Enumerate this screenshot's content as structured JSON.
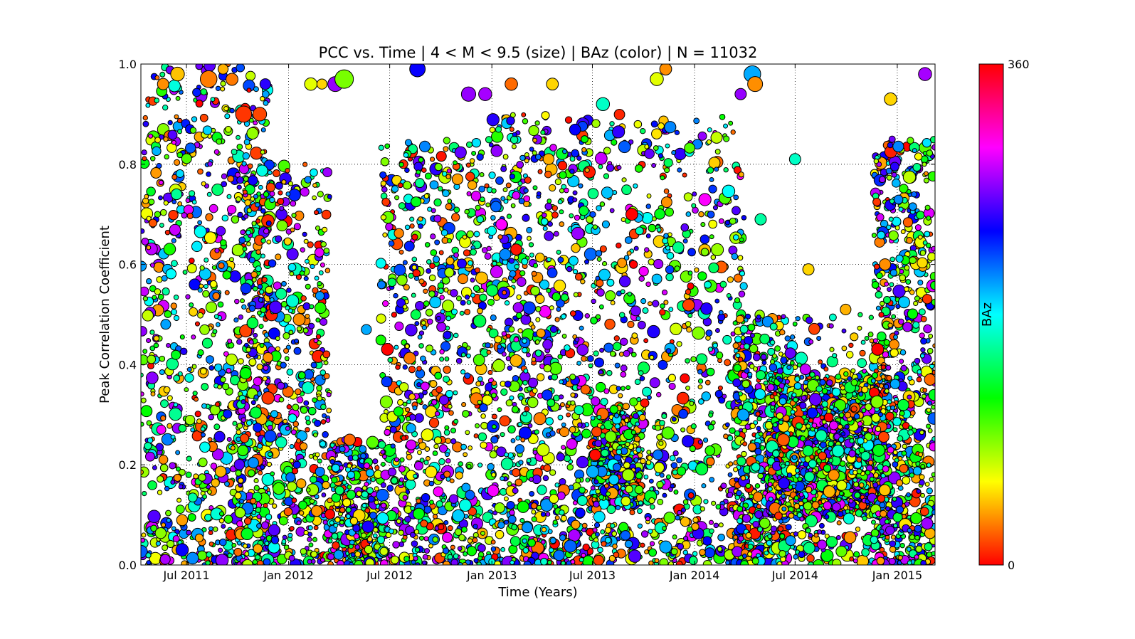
{
  "chart_data": {
    "type": "scatter",
    "title": "PCC vs. Time | 4 < M < 9.5 (size) | BAz (color) | N = 11032",
    "xlabel": "Time (Years)",
    "ylabel": "Peak Correlation Coefficient",
    "x_is_date": true,
    "xlim": [
      "2011-04-10",
      "2015-03-10"
    ],
    "ylim": [
      0.0,
      1.0
    ],
    "x_ticks": [
      {
        "date": "2011-07-01",
        "label": "Jul 2011"
      },
      {
        "date": "2012-01-01",
        "label": "Jan 2012"
      },
      {
        "date": "2012-07-01",
        "label": "Jul 2012"
      },
      {
        "date": "2013-01-01",
        "label": "Jan 2013"
      },
      {
        "date": "2013-07-01",
        "label": "Jul 2013"
      },
      {
        "date": "2014-01-01",
        "label": "Jan 2014"
      },
      {
        "date": "2014-07-01",
        "label": "Jul 2014"
      },
      {
        "date": "2015-01-01",
        "label": "Jan 2015"
      }
    ],
    "y_ticks": [
      "0.0",
      "0.2",
      "0.4",
      "0.6",
      "0.8",
      "1.0"
    ],
    "grid": true,
    "colorbar": {
      "label": "BAz",
      "min": 0,
      "max": 360,
      "min_label": "0",
      "max_label": "360",
      "colormap": "hsv"
    },
    "size_variable": "M",
    "marker_edge_color": "#000000",
    "sample_points_note_count": 11032,
    "points": [
      {
        "date": "2011-05-20",
        "pcc": 0.96,
        "baz": 40,
        "m": 5.2
      },
      {
        "date": "2011-06-15",
        "pcc": 0.98,
        "baz": 55,
        "m": 5.6
      },
      {
        "date": "2011-08-10",
        "pcc": 0.97,
        "baz": 35,
        "m": 6.1
      },
      {
        "date": "2011-09-05",
        "pcc": 0.99,
        "baz": 50,
        "m": 5.0
      },
      {
        "date": "2011-10-12",
        "pcc": 0.9,
        "baz": 15,
        "m": 6.0
      },
      {
        "date": "2011-11-20",
        "pcc": 0.96,
        "baz": 300,
        "m": 5.1
      },
      {
        "date": "2012-02-10",
        "pcc": 0.96,
        "baz": 80,
        "m": 5.4
      },
      {
        "date": "2012-03-01",
        "pcc": 0.96,
        "baz": 60,
        "m": 5.0
      },
      {
        "date": "2012-03-25",
        "pcc": 0.96,
        "baz": 330,
        "m": 5.8
      },
      {
        "date": "2012-04-10",
        "pcc": 0.97,
        "baz": 110,
        "m": 6.4
      },
      {
        "date": "2012-08-20",
        "pcc": 0.99,
        "baz": 290,
        "m": 5.9
      },
      {
        "date": "2012-11-20",
        "pcc": 0.94,
        "baz": 330,
        "m": 5.7
      },
      {
        "date": "2012-12-20",
        "pcc": 0.94,
        "baz": 335,
        "m": 5.5
      },
      {
        "date": "2013-02-05",
        "pcc": 0.96,
        "baz": 30,
        "m": 5.4
      },
      {
        "date": "2013-04-20",
        "pcc": 0.96,
        "baz": 60,
        "m": 5.3
      },
      {
        "date": "2013-07-20",
        "pcc": 0.92,
        "baz": 200,
        "m": 5.5
      },
      {
        "date": "2013-10-25",
        "pcc": 0.97,
        "baz": 80,
        "m": 5.5
      },
      {
        "date": "2013-11-10",
        "pcc": 0.99,
        "baz": 40,
        "m": 5.3
      },
      {
        "date": "2014-04-15",
        "pcc": 0.98,
        "baz": 240,
        "m": 6.1
      },
      {
        "date": "2014-04-20",
        "pcc": 0.96,
        "baz": 40,
        "m": 5.8
      },
      {
        "date": "2014-03-25",
        "pcc": 0.94,
        "baz": 330,
        "m": 5.2
      },
      {
        "date": "2014-12-20",
        "pcc": 0.93,
        "baz": 60,
        "m": 5.4
      },
      {
        "date": "2015-02-20",
        "pcc": 0.98,
        "baz": 335,
        "m": 5.5
      },
      {
        "date": "2011-11-10",
        "pcc": 0.9,
        "baz": 20,
        "m": 5.6
      },
      {
        "date": "2012-01-20",
        "pcc": 0.49,
        "baz": 40,
        "m": 5.3
      },
      {
        "date": "2012-05-20",
        "pcc": 0.47,
        "baz": 240,
        "m": 5.0
      },
      {
        "date": "2013-01-25",
        "pcc": 0.62,
        "baz": 250,
        "m": 5.2
      },
      {
        "date": "2013-09-10",
        "pcc": 0.7,
        "baz": 0,
        "m": 5.3
      },
      {
        "date": "2014-04-30",
        "pcc": 0.69,
        "baz": 190,
        "m": 5.2
      },
      {
        "date": "2014-07-01",
        "pcc": 0.81,
        "baz": 200,
        "m": 5.2
      },
      {
        "date": "2014-07-25",
        "pcc": 0.59,
        "baz": 60,
        "m": 5.2
      },
      {
        "date": "2014-09-30",
        "pcc": 0.51,
        "baz": 50,
        "m": 5.1
      },
      {
        "date": "2014-12-10",
        "pcc": 0.6,
        "baz": 40,
        "m": 5.2
      },
      {
        "date": "2014-06-10",
        "pcc": 0.25,
        "baz": 25,
        "m": 5.3
      },
      {
        "date": "2012-04-20",
        "pcc": 0.25,
        "baz": 30,
        "m": 5.2
      },
      {
        "date": "2015-03-01",
        "pcc": 0.37,
        "baz": 30,
        "m": 5.2
      }
    ],
    "clusters": [
      {
        "date_start": "2011-04-10",
        "date_end": "2011-12-01",
        "pcc_min": 0.0,
        "pcc_max": 1.0,
        "baz_min": 0,
        "baz_max": 360,
        "count": 900
      },
      {
        "date_start": "2011-10-01",
        "date_end": "2012-03-15",
        "pcc_min": 0.0,
        "pcc_max": 0.8,
        "baz_min": 0,
        "baz_max": 360,
        "count": 650
      },
      {
        "date_start": "2012-03-15",
        "date_end": "2012-06-15",
        "pcc_min": 0.0,
        "pcc_max": 0.25,
        "baz_min": 0,
        "baz_max": 360,
        "count": 350
      },
      {
        "date_start": "2012-06-15",
        "date_end": "2012-12-31",
        "pcc_min": 0.0,
        "pcc_max": 0.85,
        "baz_min": 0,
        "baz_max": 360,
        "count": 800
      },
      {
        "date_start": "2013-01-01",
        "date_end": "2013-06-30",
        "pcc_min": 0.0,
        "pcc_max": 0.9,
        "baz_min": 0,
        "baz_max": 360,
        "count": 800
      },
      {
        "date_start": "2013-07-01",
        "date_end": "2013-09-30",
        "pcc_min": 0.12,
        "pcc_max": 0.32,
        "baz_min": 0,
        "baz_max": 360,
        "count": 350
      },
      {
        "date_start": "2013-07-01",
        "date_end": "2014-03-31",
        "pcc_min": 0.0,
        "pcc_max": 0.9,
        "baz_min": 0,
        "baz_max": 360,
        "count": 800
      },
      {
        "date_start": "2014-03-15",
        "date_end": "2014-06-15",
        "pcc_min": 0.0,
        "pcc_max": 0.5,
        "baz_min": 0,
        "baz_max": 360,
        "count": 500
      },
      {
        "date_start": "2014-05-15",
        "date_end": "2014-12-15",
        "pcc_min": 0.1,
        "pcc_max": 0.38,
        "baz_min": 0,
        "baz_max": 360,
        "count": 1200
      },
      {
        "date_start": "2014-06-01",
        "date_end": "2014-12-15",
        "pcc_min": 0.0,
        "pcc_max": 0.5,
        "baz_min": 0,
        "baz_max": 360,
        "count": 350
      },
      {
        "date_start": "2014-11-20",
        "date_end": "2015-03-10",
        "pcc_min": 0.0,
        "pcc_max": 0.85,
        "baz_min": 0,
        "baz_max": 360,
        "count": 700
      }
    ]
  }
}
